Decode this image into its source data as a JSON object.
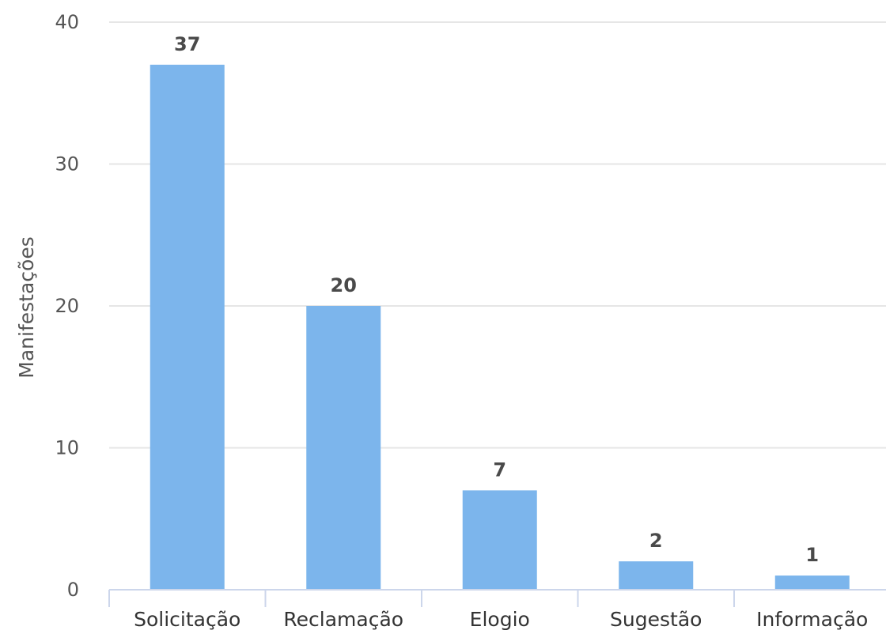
{
  "chart_data": {
    "type": "bar",
    "title": "",
    "xlabel": "",
    "ylabel": "Manifestações",
    "categories": [
      "Solicitação",
      "Reclamação",
      "Elogio",
      "Sugestão",
      "Informação"
    ],
    "values": [
      37,
      20,
      7,
      2,
      1
    ],
    "ylim": [
      0,
      40
    ],
    "yticks": [
      0,
      10,
      20,
      30,
      40
    ],
    "grid": true,
    "legend": "none",
    "bar_color": "#7cb5ec",
    "data_labels": true
  }
}
